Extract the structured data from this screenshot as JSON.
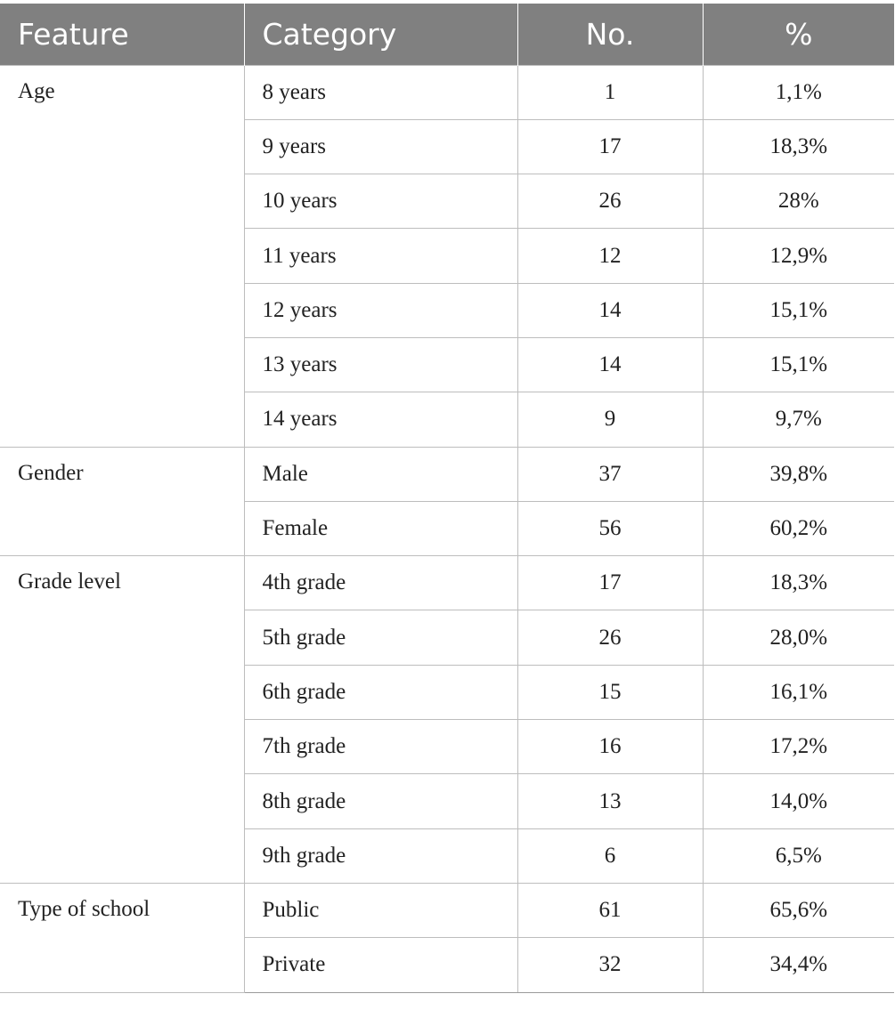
{
  "table": {
    "headers": [
      "Feature",
      "Category",
      "No.",
      "%"
    ],
    "groups": [
      {
        "feature": "Age",
        "rows": [
          {
            "category": "8 years",
            "no": "1",
            "pct": "1,1%"
          },
          {
            "category": "9 years",
            "no": "17",
            "pct": "18,3%"
          },
          {
            "category": "10 years",
            "no": "26",
            "pct": "28%"
          },
          {
            "category": "11 years",
            "no": "12",
            "pct": "12,9%"
          },
          {
            "category": "12 years",
            "no": "14",
            "pct": "15,1%"
          },
          {
            "category": "13 years",
            "no": "14",
            "pct": "15,1%"
          },
          {
            "category": "14 years",
            "no": "9",
            "pct": "9,7%"
          }
        ]
      },
      {
        "feature": "Gender",
        "rows": [
          {
            "category": "Male",
            "no": "37",
            "pct": "39,8%"
          },
          {
            "category": "Female",
            "no": "56",
            "pct": "60,2%"
          }
        ]
      },
      {
        "feature": "Grade level",
        "rows": [
          {
            "category": "4th grade",
            "no": "17",
            "pct": "18,3%"
          },
          {
            "category": "5th grade",
            "no": "26",
            "pct": "28,0%"
          },
          {
            "category": "6th grade",
            "no": "15",
            "pct": "16,1%"
          },
          {
            "category": "7th grade",
            "no": "16",
            "pct": "17,2%"
          },
          {
            "category": "8th grade",
            "no": "13",
            "pct": "14,0%"
          },
          {
            "category": "9th grade",
            "no": "6",
            "pct": "6,5%"
          }
        ]
      },
      {
        "feature": "Type of school",
        "rows": [
          {
            "category": "Public",
            "no": "61",
            "pct": "65,6%"
          },
          {
            "category": "Private",
            "no": "32",
            "pct": "34,4%"
          }
        ]
      }
    ]
  }
}
